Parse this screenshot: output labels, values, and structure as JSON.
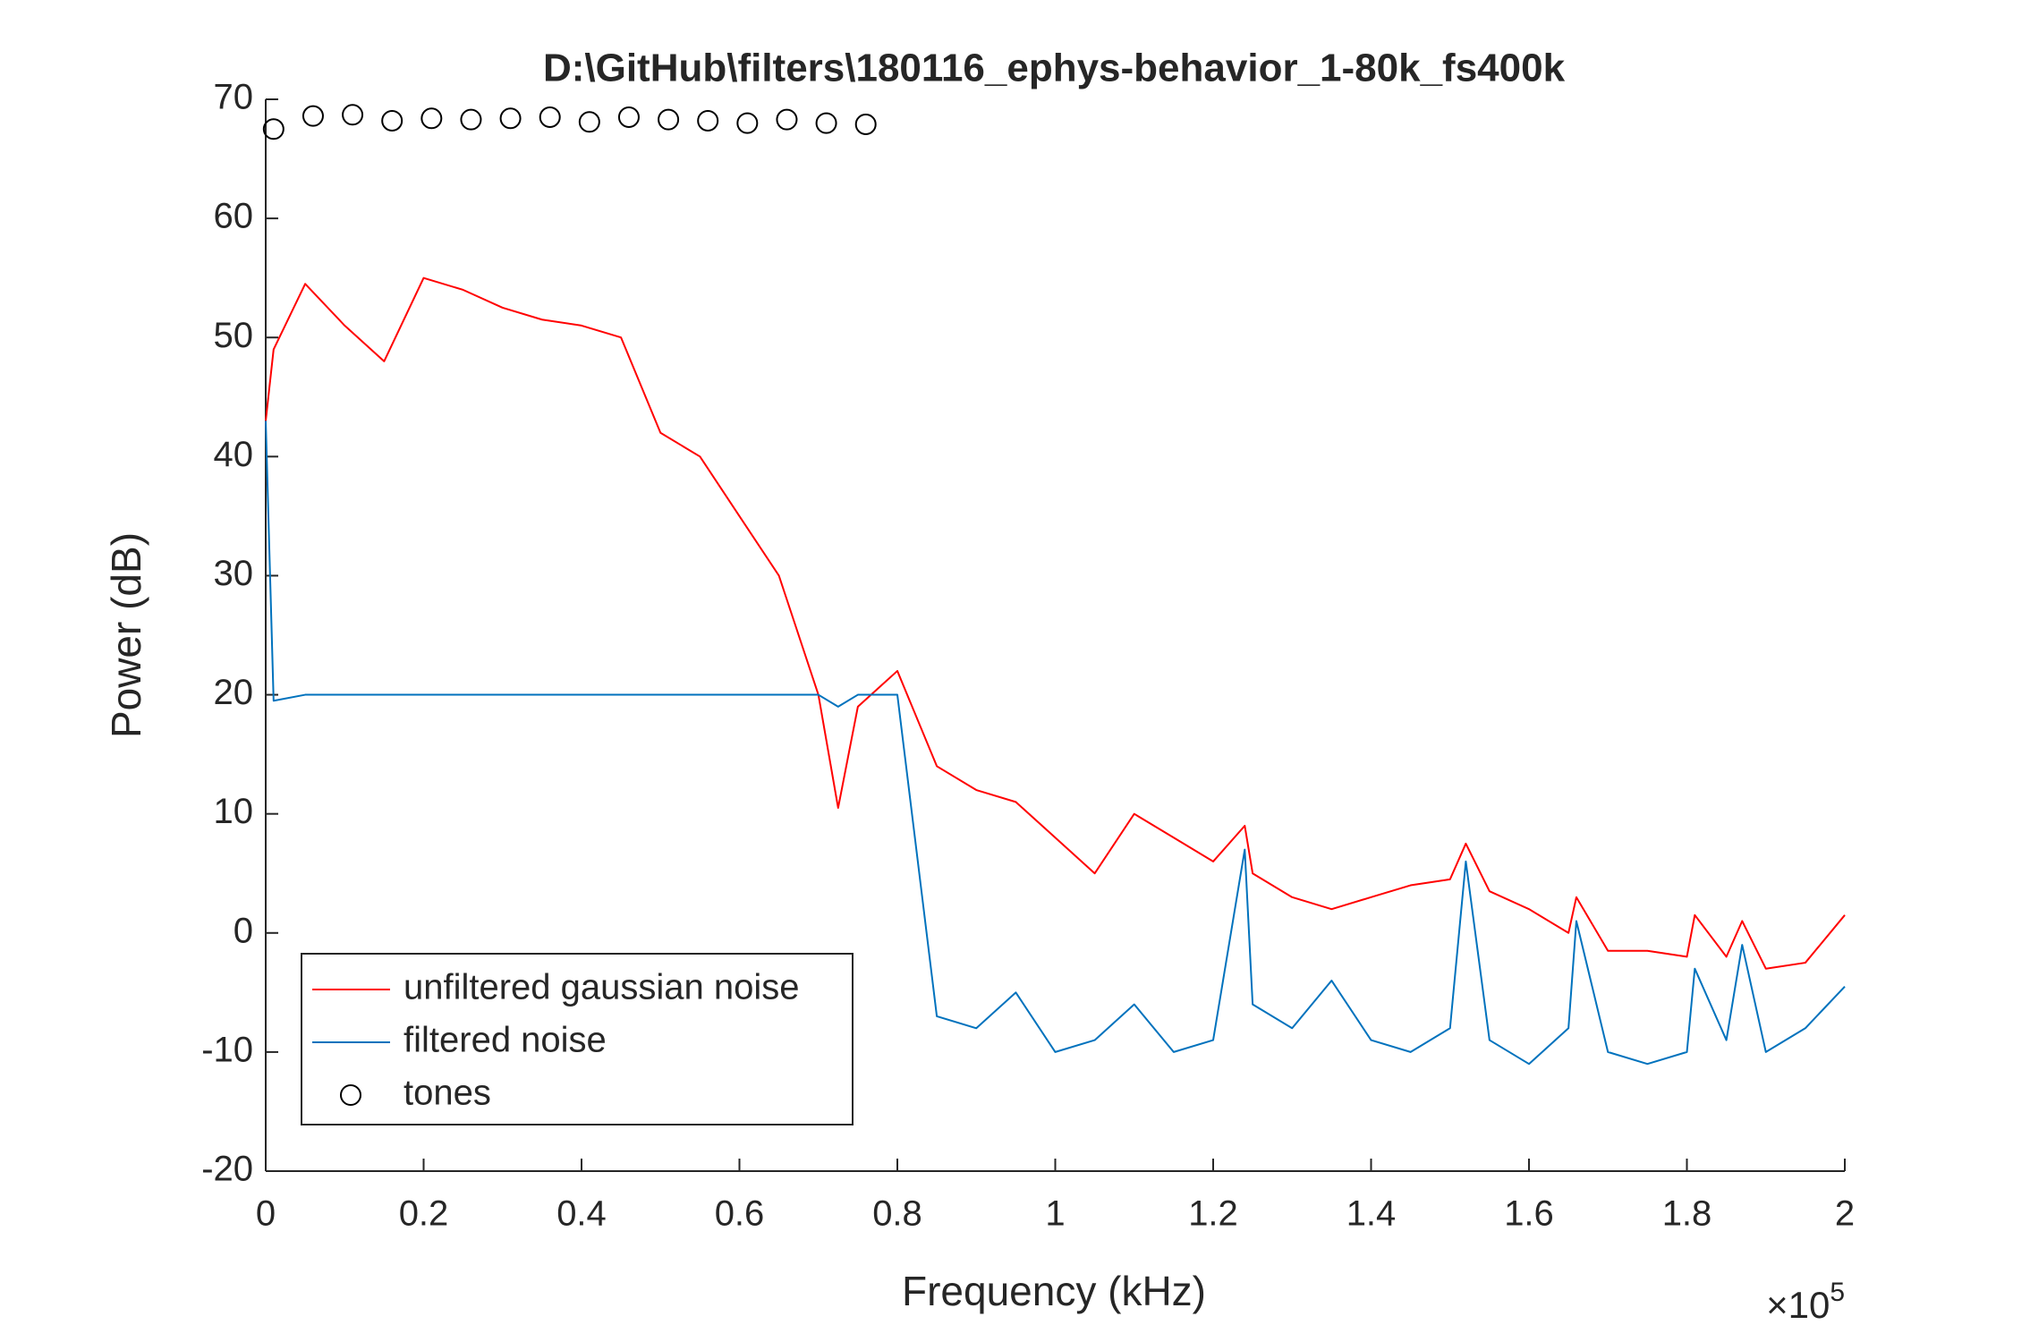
{
  "chart_data": {
    "type": "line",
    "title": "D:\\GitHub\\filters\\180116_ephys-behavior_1-80k_fs400k",
    "x_label": "Frequency (kHz)",
    "y_label": "Power (dB)",
    "x_multiplier": {
      "base": "×10",
      "exponent": "5"
    },
    "x": [
      0,
      1000,
      5000,
      10000,
      15000,
      20000,
      25000,
      30000,
      35000,
      40000,
      45000,
      50000,
      55000,
      60000,
      65000,
      70000,
      72500,
      75000,
      80000,
      85000,
      90000,
      95000,
      100000,
      105000,
      110000,
      115000,
      120000,
      124000,
      125000,
      130000,
      135000,
      140000,
      145000,
      150000,
      152000,
      155000,
      160000,
      165000,
      166000,
      170000,
      175000,
      180000,
      181000,
      185000,
      187000,
      190000,
      195000,
      200000
    ],
    "series": [
      {
        "name": "unfiltered gaussian noise",
        "color": "#ff0000",
        "values": [
          43,
          49,
          54.5,
          51,
          48,
          55,
          54,
          52.5,
          51.5,
          51,
          50,
          42,
          40,
          35,
          30,
          20,
          10.5,
          19,
          22,
          14,
          12,
          11,
          8,
          5,
          10,
          8,
          6,
          9,
          5,
          3,
          2,
          3,
          4,
          4.5,
          7.5,
          3.5,
          2,
          0,
          3,
          -1.5,
          -1.5,
          -2,
          1.5,
          -2,
          1,
          -3,
          -2.5,
          1.5
        ]
      },
      {
        "name": "filtered noise",
        "color": "#0072bd",
        "values": [
          43,
          19.5,
          20,
          20,
          20,
          20,
          20,
          20,
          20,
          20,
          20,
          20,
          20,
          20,
          20,
          20,
          19,
          20,
          20,
          -7,
          -8,
          -5,
          -10,
          -9,
          -6,
          -10,
          -9,
          7,
          -6,
          -8,
          -4,
          -9,
          -10,
          -8,
          6,
          -9,
          -11,
          -8,
          1,
          -10,
          -11,
          -10,
          -3,
          -9,
          -1,
          -10,
          -8,
          -4.5
        ]
      },
      {
        "name": "tones",
        "color": "#000000",
        "marker": "circle",
        "x": [
          1000,
          6000,
          11000,
          16000,
          21000,
          26000,
          31000,
          36000,
          41000,
          46000,
          51000,
          56000,
          61000,
          66000,
          71000,
          76000
        ],
        "values": [
          67.5,
          68.6,
          68.7,
          68.2,
          68.4,
          68.3,
          68.4,
          68.5,
          68.1,
          68.5,
          68.3,
          68.2,
          68.0,
          68.3,
          68.0,
          67.9
        ]
      }
    ],
    "xlim": [
      0,
      200000
    ],
    "ylim": [
      -20,
      70
    ],
    "xticks": [
      0,
      {
        "value": 20000,
        "label": "0.2"
      },
      {
        "value": 40000,
        "label": "0.4"
      },
      {
        "value": 60000,
        "label": "0.6"
      },
      {
        "value": 80000,
        "label": "0.8"
      },
      {
        "value": 100000,
        "label": "1"
      },
      {
        "value": 120000,
        "label": "1.2"
      },
      {
        "value": 140000,
        "label": "1.4"
      },
      {
        "value": 160000,
        "label": "1.6"
      },
      {
        "value": 180000,
        "label": "1.8"
      },
      {
        "value": 200000,
        "label": "2"
      }
    ],
    "yticks": [
      -20,
      -10,
      0,
      10,
      20,
      30,
      40,
      50,
      60,
      70
    ],
    "grid": false,
    "legend": "lower-left"
  }
}
